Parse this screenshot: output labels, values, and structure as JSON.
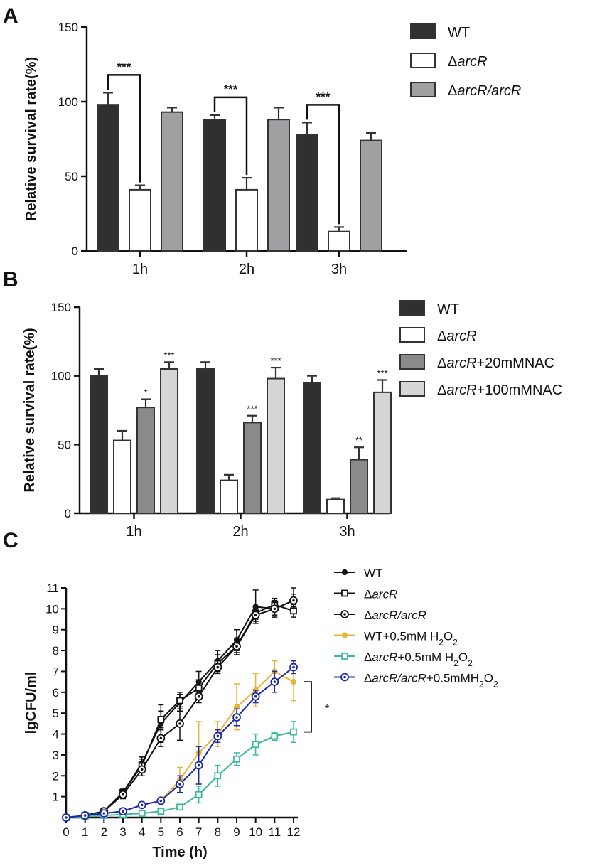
{
  "figure": {
    "panels": [
      "A",
      "B",
      "C"
    ]
  },
  "chart_data": [
    {
      "panel": "A",
      "type": "bar",
      "ylabel": "Relative survival rate(%)",
      "xlabel": "",
      "ylim": [
        0,
        150
      ],
      "yticks": [
        0,
        50,
        100,
        150
      ],
      "categories": [
        "1h",
        "2h",
        "3h"
      ],
      "series": [
        {
          "name": "WT",
          "name_plain": "",
          "name_italic": "",
          "name_suffix": "",
          "color": "#303030",
          "values": [
            98,
            88,
            78
          ],
          "errors": [
            8,
            3,
            8
          ]
        },
        {
          "name": "ΔarcR",
          "name_plain": "Δ",
          "name_italic": "arcR",
          "name_suffix": "",
          "color": "#ffffff",
          "values": [
            41,
            41,
            13
          ],
          "errors": [
            3,
            8,
            3
          ]
        },
        {
          "name": "ΔarcR/arcR",
          "name_plain": "Δ",
          "name_italic": "arcR/arcR",
          "name_suffix": "",
          "color": "#a0a0a3",
          "values": [
            93,
            88,
            74
          ],
          "errors": [
            3,
            8,
            5
          ]
        }
      ],
      "significance": [
        {
          "category": "1h",
          "label": "***"
        },
        {
          "category": "2h",
          "label": "***"
        },
        {
          "category": "3h",
          "label": "***"
        }
      ]
    },
    {
      "panel": "B",
      "type": "bar",
      "ylabel": "Relative survival rate(%)",
      "xlabel": "",
      "ylim": [
        0,
        150
      ],
      "yticks": [
        0,
        50,
        100,
        150
      ],
      "categories": [
        "1h",
        "2h",
        "3h"
      ],
      "series": [
        {
          "name": "WT",
          "name_plain": "",
          "name_italic": "",
          "name_suffix": "",
          "color": "#303030",
          "values": [
            100,
            105,
            95
          ],
          "errors": [
            5,
            5,
            5
          ],
          "sig": [
            "",
            "",
            ""
          ]
        },
        {
          "name": "ΔarcR",
          "name_plain": "Δ",
          "name_italic": "arcR",
          "name_suffix": "",
          "color": "#ffffff",
          "values": [
            53,
            24,
            10
          ],
          "errors": [
            7,
            4,
            1
          ],
          "sig": [
            "",
            "",
            ""
          ]
        },
        {
          "name": "ΔarcR+20mMNAC",
          "name_plain": "Δ",
          "name_italic": "arcR",
          "name_suffix": "+20mMNAC",
          "color": "#8a8a8c",
          "values": [
            77,
            66,
            39
          ],
          "errors": [
            6,
            5,
            9
          ],
          "sig": [
            "*",
            "***",
            "**"
          ]
        },
        {
          "name": "ΔarcR+100mMNAC",
          "name_plain": "Δ",
          "name_italic": "arcR",
          "name_suffix": "+100mMNAC",
          "color": "#d6d6d6",
          "values": [
            105,
            98,
            88
          ],
          "errors": [
            5,
            8,
            9
          ],
          "sig": [
            "***",
            "***",
            "***"
          ]
        }
      ]
    },
    {
      "panel": "C",
      "type": "line",
      "ylabel": "lgCFU/ml",
      "xlabel": "Time (h)",
      "xlim": [
        0,
        12
      ],
      "ylim": [
        0,
        11
      ],
      "x": [
        0,
        1,
        2,
        3,
        4,
        5,
        6,
        7,
        8,
        9,
        10,
        11,
        12
      ],
      "yticks": [
        1,
        2,
        3,
        4,
        5,
        6,
        7,
        8,
        9,
        10,
        11
      ],
      "series": [
        {
          "name": "WT",
          "label_plain": "WT",
          "label_italic": "",
          "label_suffix": "",
          "color": "#111111",
          "marker": "dot",
          "values": [
            0,
            0.1,
            0.3,
            1.2,
            2.6,
            4.5,
            5.5,
            6.5,
            7.5,
            8.5,
            10.1,
            10.0,
            10.4
          ],
          "errors": [
            0,
            0.05,
            0.1,
            0.2,
            0.3,
            0.9,
            0.4,
            0.5,
            0.5,
            0.5,
            0.8,
            0.4,
            0.6
          ]
        },
        {
          "name": "ΔarcR",
          "label_plain": "Δ",
          "label_italic": "arcR",
          "label_suffix": "",
          "color": "#111111",
          "marker": "square",
          "values": [
            0,
            0.1,
            0.3,
            1.2,
            2.5,
            4.7,
            5.6,
            6.2,
            7.4,
            8.2,
            9.8,
            10.2,
            9.9
          ],
          "errors": [
            0,
            0.05,
            0.1,
            0.2,
            0.3,
            0.4,
            0.4,
            0.4,
            0.4,
            0.4,
            0.3,
            0.3,
            0.3
          ]
        },
        {
          "name": "ΔarcR/arcR",
          "label_plain": "Δ",
          "label_italic": "arcR/arcR",
          "label_suffix": "",
          "color": "#111111",
          "marker": "circle-dot",
          "values": [
            0,
            0.1,
            0.3,
            1.1,
            2.3,
            3.8,
            4.5,
            5.8,
            7.2,
            8.2,
            9.7,
            10.0,
            10.4
          ],
          "errors": [
            0,
            0.05,
            0.1,
            0.2,
            0.3,
            0.4,
            0.8,
            0.3,
            0.3,
            0.3,
            0.3,
            0.3,
            0.3
          ]
        },
        {
          "name": "WT+0.5mM H2O2",
          "label_plain": "WT+0.5mM H",
          "label_italic": "",
          "label_suffix": "",
          "color": "#e8b43a",
          "marker": "dot",
          "values": [
            0,
            0.1,
            0.2,
            0.3,
            0.6,
            0.8,
            1.8,
            3.1,
            4.0,
            5.3,
            6.1,
            7.0,
            6.5
          ],
          "errors": [
            0,
            0.05,
            0.05,
            0.1,
            0.1,
            0.2,
            0.6,
            1.5,
            0.6,
            1.1,
            0.8,
            0.5,
            0.9
          ]
        },
        {
          "name": "ΔarcR+0.5mM H2O2",
          "label_plain": "Δ",
          "label_italic": "arcR",
          "label_suffix": "+0.5mM H",
          "color": "#3cb99c",
          "marker": "square",
          "values": [
            0,
            0.05,
            0.1,
            0.15,
            0.2,
            0.3,
            0.5,
            1.1,
            2.0,
            2.8,
            3.5,
            3.9,
            4.1
          ],
          "errors": [
            0,
            0.02,
            0.03,
            0.05,
            0.05,
            0.05,
            0.1,
            0.4,
            0.5,
            0.3,
            0.5,
            0.2,
            0.5
          ]
        },
        {
          "name": "ΔarcR/arcR+0.5mMH2O2",
          "label_plain": "Δ",
          "label_italic": "arcR/arcR",
          "label_suffix": "+0.5mMH",
          "color": "#1c2aa8",
          "marker": "circle-dot",
          "values": [
            0,
            0.1,
            0.2,
            0.3,
            0.6,
            0.8,
            1.6,
            2.5,
            3.9,
            4.8,
            5.8,
            6.5,
            7.2
          ],
          "errors": [
            0,
            0.05,
            0.05,
            0.1,
            0.1,
            0.1,
            0.4,
            0.9,
            0.3,
            0.4,
            0.3,
            0.5,
            0.3
          ]
        }
      ],
      "h2o2_sub": {
        "sub2": "2",
        "mid": "O",
        "sub2b": "2"
      },
      "significance": {
        "label": "*"
      }
    }
  ]
}
